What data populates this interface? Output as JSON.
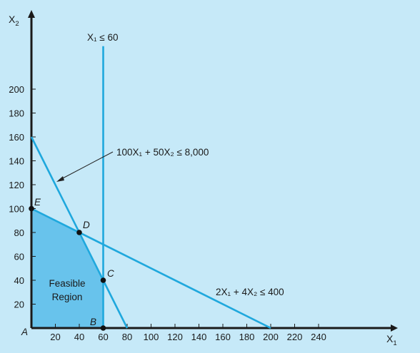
{
  "chart_data": {
    "type": "line",
    "title": "",
    "xlabel": "X",
    "xlabel_sub": "1",
    "ylabel": "X",
    "ylabel_sub": "2",
    "xlim": [
      0,
      260
    ],
    "ylim": [
      0,
      220
    ],
    "x_ticks": [
      20,
      40,
      60,
      80,
      100,
      120,
      140,
      160,
      180,
      200,
      220,
      240
    ],
    "y_ticks": [
      20,
      40,
      60,
      80,
      100,
      120,
      140,
      160,
      180,
      200
    ],
    "grid": false,
    "colors": {
      "background": "#c6e9f8",
      "line": "#1fa8dd",
      "feasible_fill": "#68c3ec",
      "axis": "#1a1a1a"
    },
    "series": [
      {
        "points": [
          [
            0,
            160
          ],
          [
            80,
            0
          ]
        ]
      },
      {
        "points": [
          [
            0,
            100
          ],
          [
            200,
            0
          ]
        ]
      },
      {
        "points": [
          [
            60,
            0
          ],
          [
            60,
            240
          ]
        ]
      }
    ],
    "feasible_region": {
      "label_line1": "Feasible",
      "label_line2": "Region",
      "vertices": [
        [
          0,
          0
        ],
        [
          0,
          100
        ],
        [
          40,
          80
        ],
        [
          60,
          40
        ],
        [
          60,
          0
        ]
      ]
    },
    "corner_points": [
      {
        "label": "A",
        "x": 0,
        "y": 0,
        "marker": false
      },
      {
        "label": "B",
        "x": 60,
        "y": 0,
        "marker": true
      },
      {
        "label": "C",
        "x": 60,
        "y": 40,
        "marker": true
      },
      {
        "label": "D",
        "x": 40,
        "y": 80,
        "marker": true
      },
      {
        "label": "E",
        "x": 0,
        "y": 100,
        "marker": true
      }
    ],
    "annotations": [
      {
        "text": "X₁ ≤ 60"
      },
      {
        "text": "100X₁ + 50X₂ ≤ 8,000"
      },
      {
        "text": "2X₁ + 4X₂ ≤ 400"
      }
    ]
  }
}
